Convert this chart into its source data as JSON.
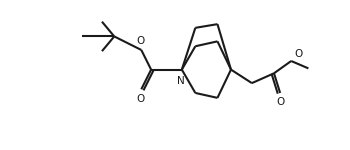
{
  "line_color": "#1a1a1a",
  "bg_color": "#ffffff",
  "lw": 1.5,
  "fig_width": 3.5,
  "fig_height": 1.5,
  "dpi": 100,
  "xlim": [
    -0.5,
    10.5
  ],
  "ylim": [
    -0.2,
    4.5
  ]
}
